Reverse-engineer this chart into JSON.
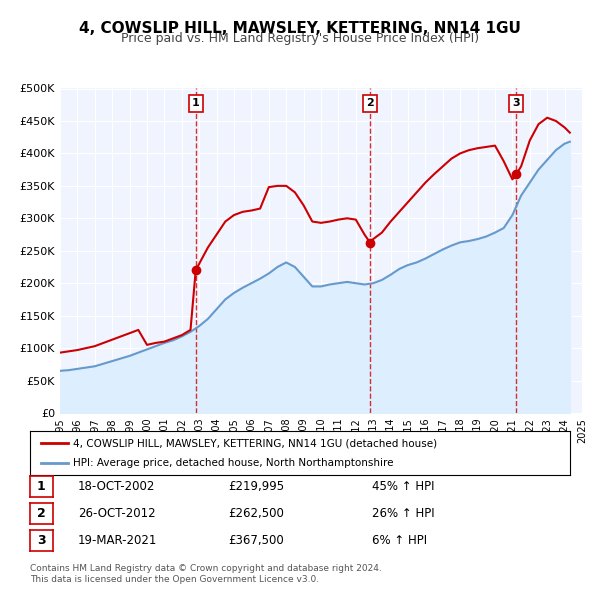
{
  "title": "4, COWSLIP HILL, MAWSLEY, KETTERING, NN14 1GU",
  "subtitle": "Price paid vs. HM Land Registry's House Price Index (HPI)",
  "legend_line1": "4, COWSLIP HILL, MAWSLEY, KETTERING, NN14 1GU (detached house)",
  "legend_line2": "HPI: Average price, detached house, North Northamptonshire",
  "footer_line1": "Contains HM Land Registry data © Crown copyright and database right 2024.",
  "footer_line2": "This data is licensed under the Open Government Licence v3.0.",
  "xlabel": "",
  "ylabel": "",
  "ylim": [
    0,
    500000
  ],
  "yticks": [
    0,
    50000,
    100000,
    150000,
    200000,
    250000,
    300000,
    350000,
    400000,
    450000,
    500000
  ],
  "ytick_labels": [
    "£0",
    "£50K",
    "£100K",
    "£150K",
    "£200K",
    "£250K",
    "£300K",
    "£350K",
    "£400K",
    "£450K",
    "£500K"
  ],
  "price_paid_color": "#cc0000",
  "hpi_color": "#6699cc",
  "hpi_fill_color": "#ddeeff",
  "vline_color": "#cc0000",
  "sale_marker_color": "#cc0000",
  "sales": [
    {
      "label": "1",
      "date_num": 2002.8,
      "price": 219995,
      "hpi_pct": "45% ↑ HPI",
      "date_str": "18-OCT-2002",
      "price_str": "£219,995"
    },
    {
      "label": "2",
      "date_num": 2012.82,
      "price": 262500,
      "hpi_pct": "26% ↑ HPI",
      "date_str": "26-OCT-2012",
      "price_str": "£262,500"
    },
    {
      "label": "3",
      "date_num": 2021.22,
      "price": 367500,
      "hpi_pct": "6% ↑ HPI",
      "date_str": "19-MAR-2021",
      "price_str": "£367,500"
    }
  ],
  "hpi_x": [
    1995.0,
    1995.5,
    1996.0,
    1996.5,
    1997.0,
    1997.5,
    1998.0,
    1998.5,
    1999.0,
    1999.5,
    2000.0,
    2000.5,
    2001.0,
    2001.5,
    2002.0,
    2002.5,
    2003.0,
    2003.5,
    2004.0,
    2004.5,
    2005.0,
    2005.5,
    2006.0,
    2006.5,
    2007.0,
    2007.5,
    2008.0,
    2008.5,
    2009.0,
    2009.5,
    2010.0,
    2010.5,
    2011.0,
    2011.5,
    2012.0,
    2012.5,
    2013.0,
    2013.5,
    2014.0,
    2014.5,
    2015.0,
    2015.5,
    2016.0,
    2016.5,
    2017.0,
    2017.5,
    2018.0,
    2018.5,
    2019.0,
    2019.5,
    2020.0,
    2020.5,
    2021.0,
    2021.5,
    2022.0,
    2022.5,
    2023.0,
    2023.5,
    2024.0,
    2024.3
  ],
  "hpi_y": [
    65000,
    66000,
    68000,
    70000,
    72000,
    76000,
    80000,
    84000,
    88000,
    93000,
    98000,
    103000,
    108000,
    112000,
    118000,
    125000,
    134000,
    145000,
    160000,
    175000,
    185000,
    193000,
    200000,
    207000,
    215000,
    225000,
    232000,
    225000,
    210000,
    195000,
    195000,
    198000,
    200000,
    202000,
    200000,
    198000,
    200000,
    205000,
    213000,
    222000,
    228000,
    232000,
    238000,
    245000,
    252000,
    258000,
    263000,
    265000,
    268000,
    272000,
    278000,
    285000,
    305000,
    335000,
    355000,
    375000,
    390000,
    405000,
    415000,
    418000
  ],
  "price_paid_x": [
    1995.0,
    1995.5,
    1996.0,
    1996.5,
    1997.0,
    1997.5,
    1998.0,
    1998.5,
    1999.0,
    1999.5,
    2000.0,
    2000.5,
    2001.0,
    2001.5,
    2002.0,
    2002.5,
    2002.8,
    2003.0,
    2003.5,
    2004.0,
    2004.5,
    2005.0,
    2005.5,
    2006.0,
    2006.5,
    2007.0,
    2007.5,
    2008.0,
    2008.5,
    2009.0,
    2009.5,
    2010.0,
    2010.5,
    2011.0,
    2011.5,
    2012.0,
    2012.5,
    2012.82,
    2013.0,
    2013.5,
    2014.0,
    2014.5,
    2015.0,
    2015.5,
    2016.0,
    2016.5,
    2017.0,
    2017.5,
    2018.0,
    2018.5,
    2019.0,
    2019.5,
    2020.0,
    2020.5,
    2021.0,
    2021.22,
    2021.5,
    2022.0,
    2022.5,
    2023.0,
    2023.5,
    2024.0,
    2024.3
  ],
  "price_paid_y": [
    93000,
    95000,
    97000,
    100000,
    103000,
    108000,
    113000,
    118000,
    123000,
    128000,
    105000,
    108000,
    110000,
    115000,
    120000,
    128000,
    219995,
    230000,
    255000,
    275000,
    295000,
    305000,
    310000,
    312000,
    315000,
    348000,
    350000,
    350000,
    340000,
    320000,
    295000,
    293000,
    295000,
    298000,
    300000,
    298000,
    275000,
    262500,
    268000,
    278000,
    295000,
    310000,
    325000,
    340000,
    355000,
    368000,
    380000,
    392000,
    400000,
    405000,
    408000,
    410000,
    412000,
    388000,
    360000,
    367500,
    380000,
    420000,
    445000,
    455000,
    450000,
    440000,
    432000
  ],
  "xlim": [
    1995.0,
    2025.0
  ],
  "xtick_years": [
    1995,
    1996,
    1997,
    1998,
    1999,
    2000,
    2001,
    2002,
    2003,
    2004,
    2005,
    2006,
    2007,
    2008,
    2009,
    2010,
    2011,
    2012,
    2013,
    2014,
    2015,
    2016,
    2017,
    2018,
    2019,
    2020,
    2021,
    2022,
    2023,
    2024,
    2025
  ],
  "background_color": "#f0f4ff",
  "plot_bg_color": "#f0f4ff"
}
